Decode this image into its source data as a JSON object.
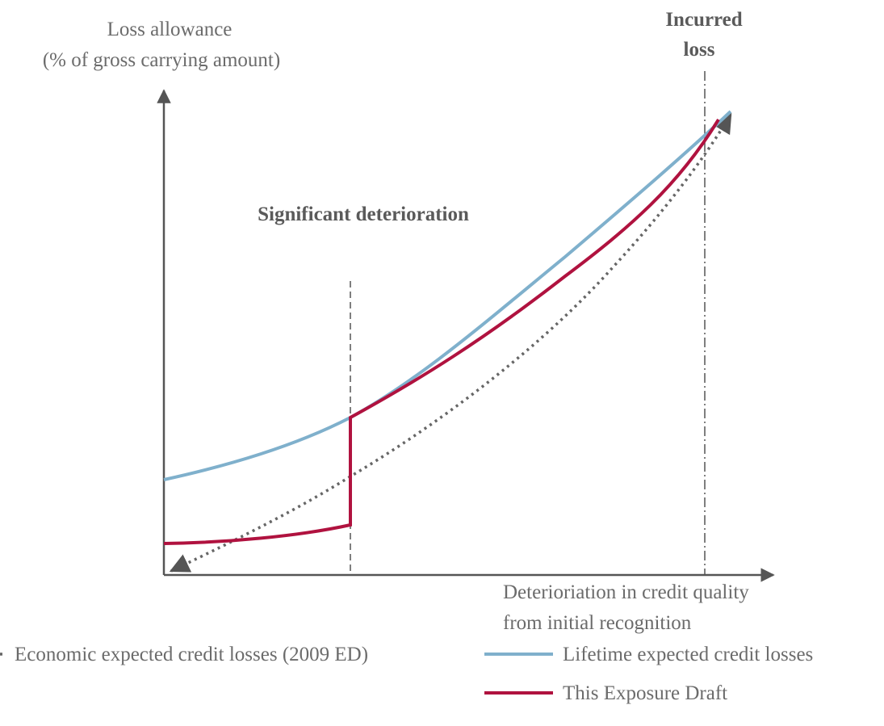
{
  "y_axis_label": [
    "Loss allowance",
    "(% of gross carrying amount)"
  ],
  "x_axis_label": [
    "Deterioriation in credit quality",
    "from initial recognition"
  ],
  "annotations": {
    "incurred_loss": [
      "Incurred",
      "loss"
    ],
    "significant_deterioration": "Significant deterioration"
  },
  "legend": [
    "Economic expected credit losses (2009 ED)",
    "Lifetime expected credit losses",
    "This Exposure Draft"
  ]
}
